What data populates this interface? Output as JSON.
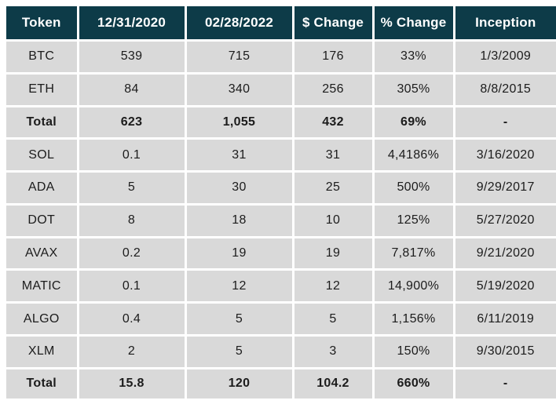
{
  "chart_data": {
    "type": "table",
    "columns": [
      "Token",
      "12/31/2020",
      "02/28/2022",
      "$ Change",
      "% Change",
      "Inception"
    ],
    "rows": [
      [
        "BTC",
        "539",
        "715",
        "176",
        "33%",
        "1/3/2009"
      ],
      [
        "ETH",
        "84",
        "340",
        "256",
        "305%",
        "8/8/2015"
      ],
      [
        "Total",
        "623",
        "1,055",
        "432",
        "69%",
        "-"
      ],
      [
        "SOL",
        "0.1",
        "31",
        "31",
        "4,4186%",
        "3/16/2020"
      ],
      [
        "ADA",
        "5",
        "30",
        "25",
        "500%",
        "9/29/2017"
      ],
      [
        "DOT",
        "8",
        "18",
        "10",
        "125%",
        "5/27/2020"
      ],
      [
        "AVAX",
        "0.2",
        "19",
        "19",
        "7,817%",
        "9/21/2020"
      ],
      [
        "MATIC",
        "0.1",
        "12",
        "12",
        "14,900%",
        "5/19/2020"
      ],
      [
        "ALGO",
        "0.4",
        "5",
        "5",
        "1,156%",
        "6/11/2019"
      ],
      [
        "XLM",
        "2",
        "5",
        "3",
        "150%",
        "9/30/2015"
      ],
      [
        "Total",
        "15.8",
        "120",
        "104.2",
        "660%",
        "-"
      ]
    ],
    "bold_row_indices": [
      2,
      10
    ],
    "layout_hints": {
      "legend_position": "none",
      "grid": "white-separators"
    }
  },
  "colors": {
    "header_bg": "#0d3b48",
    "header_text": "#ffffff",
    "row_bg": "#d9d9d9",
    "grid": "#ffffff",
    "body_text": "#1c1c1c"
  }
}
